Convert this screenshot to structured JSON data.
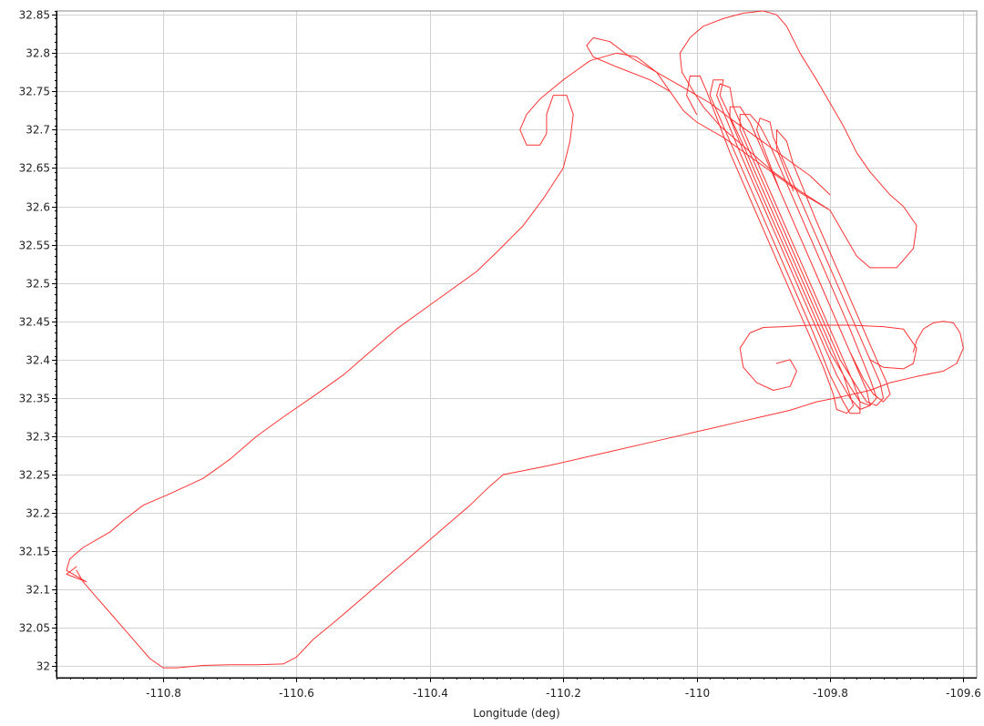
{
  "chart_data": {
    "type": "line",
    "title": "",
    "xlabel": "Longitude (deg)",
    "ylabel": "",
    "xlim": [
      -110.96,
      -109.58
    ],
    "ylim": [
      31.985,
      32.855
    ],
    "x_ticks": [
      -110.8,
      -110.6,
      -110.4,
      -110.2,
      -110,
      -109.8,
      -109.6
    ],
    "x_tick_labels": [
      "-110.8",
      "-110.6",
      "-110.4",
      "-110.2",
      "-110",
      "-109.8",
      "-109.6"
    ],
    "y_ticks": [
      32,
      32.05,
      32.1,
      32.15,
      32.2,
      32.25,
      32.3,
      32.35,
      32.4,
      32.45,
      32.5,
      32.55,
      32.6,
      32.65,
      32.7,
      32.75,
      32.8,
      32.85
    ],
    "y_tick_labels": [
      "32",
      "32.05",
      "32.1",
      "32.15",
      "32.2",
      "32.25",
      "32.3",
      "32.35",
      "32.4",
      "32.45",
      "32.5",
      "32.55",
      "32.6",
      "32.65",
      "32.7",
      "32.75",
      "32.8",
      "32.85"
    ],
    "grid": true,
    "colors": {
      "line": "#ff3333",
      "grid": "#d2d2d2",
      "axis": "#000000"
    },
    "series": [
      {
        "points": [
          [
            -110.93,
            32.13
          ],
          [
            -110.945,
            32.12
          ],
          [
            -110.915,
            32.11
          ],
          [
            -110.945,
            32.125
          ],
          [
            -110.94,
            32.14
          ],
          [
            -110.92,
            32.155
          ],
          [
            -110.9,
            32.165
          ],
          [
            -110.88,
            32.175
          ],
          [
            -110.86,
            32.19
          ],
          [
            -110.83,
            32.21
          ],
          [
            -110.79,
            32.225
          ],
          [
            -110.74,
            32.245
          ],
          [
            -110.7,
            32.27
          ],
          [
            -110.66,
            32.3
          ],
          [
            -110.62,
            32.325
          ],
          [
            -110.57,
            32.355
          ],
          [
            -110.53,
            32.38
          ],
          [
            -110.49,
            32.41
          ],
          [
            -110.45,
            32.44
          ],
          [
            -110.41,
            32.465
          ],
          [
            -110.37,
            32.49
          ],
          [
            -110.33,
            32.515
          ],
          [
            -110.3,
            32.54
          ],
          [
            -110.26,
            32.575
          ],
          [
            -110.23,
            32.61
          ],
          [
            -110.2,
            32.65
          ],
          [
            -110.19,
            32.685
          ],
          [
            -110.185,
            32.72
          ],
          [
            -110.195,
            32.745
          ],
          [
            -110.215,
            32.745
          ],
          [
            -110.225,
            32.72
          ],
          [
            -110.225,
            32.695
          ],
          [
            -110.235,
            32.68
          ],
          [
            -110.255,
            32.68
          ],
          [
            -110.265,
            32.7
          ],
          [
            -110.255,
            32.72
          ],
          [
            -110.235,
            32.74
          ],
          [
            -110.2,
            32.765
          ],
          [
            -110.16,
            32.79
          ],
          [
            -110.12,
            32.8
          ],
          [
            -110.09,
            32.795
          ],
          [
            -110.06,
            32.775
          ],
          [
            -110.04,
            32.75
          ],
          [
            -110.02,
            32.725
          ],
          [
            -110.0,
            32.71
          ],
          [
            -109.96,
            32.69
          ],
          [
            -109.92,
            32.665
          ],
          [
            -109.88,
            32.64
          ],
          [
            -109.845,
            32.618
          ],
          [
            -109.8,
            32.595
          ],
          [
            -109.78,
            32.565
          ],
          [
            -109.76,
            32.535
          ],
          [
            -109.74,
            32.52
          ],
          [
            -109.7,
            32.52
          ],
          [
            -109.675,
            32.545
          ],
          [
            -109.67,
            32.575
          ],
          [
            -109.69,
            32.6
          ],
          [
            -109.71,
            32.615
          ],
          [
            -109.74,
            32.645
          ],
          [
            -109.76,
            32.67
          ],
          [
            -109.78,
            32.705
          ],
          [
            -109.8,
            32.735
          ],
          [
            -109.82,
            32.765
          ],
          [
            -109.845,
            32.8
          ],
          [
            -109.865,
            32.835
          ],
          [
            -109.88,
            32.85
          ],
          [
            -109.9,
            32.855
          ],
          [
            -109.93,
            32.852
          ],
          [
            -109.96,
            32.845
          ],
          [
            -109.99,
            32.835
          ],
          [
            -110.01,
            32.82
          ],
          [
            -110.025,
            32.8
          ],
          [
            -110.022,
            32.775
          ],
          [
            -110.005,
            32.75
          ],
          [
            -109.99,
            32.73
          ],
          [
            -109.965,
            32.705
          ],
          [
            -109.925,
            32.675
          ],
          [
            -109.885,
            32.645
          ],
          [
            -109.845,
            32.62
          ],
          [
            -109.8,
            32.595
          ]
        ]
      },
      {
        "points": [
          [
            -110.04,
            32.75
          ],
          [
            -110.07,
            32.765
          ],
          [
            -110.12,
            32.782
          ],
          [
            -110.155,
            32.795
          ],
          [
            -110.165,
            32.81
          ],
          [
            -110.155,
            32.82
          ],
          [
            -110.13,
            32.815
          ],
          [
            -110.1,
            32.795
          ],
          [
            -110.06,
            32.775
          ],
          [
            -110.02,
            32.755
          ],
          [
            -109.98,
            32.735
          ],
          [
            -109.95,
            32.715
          ],
          [
            -109.91,
            32.69
          ],
          [
            -109.87,
            32.665
          ],
          [
            -109.83,
            32.64
          ],
          [
            -109.8,
            32.615
          ]
        ]
      },
      {
        "points": [
          [
            -110.0,
            32.72
          ],
          [
            -110.015,
            32.745
          ],
          [
            -110.01,
            32.77
          ],
          [
            -109.995,
            32.77
          ],
          [
            -109.985,
            32.75
          ],
          [
            -109.95,
            32.67
          ],
          [
            -109.91,
            32.59
          ],
          [
            -109.87,
            32.51
          ],
          [
            -109.835,
            32.44
          ],
          [
            -109.81,
            32.39
          ],
          [
            -109.795,
            32.355
          ],
          [
            -109.79,
            32.335
          ],
          [
            -109.775,
            32.33
          ],
          [
            -109.765,
            32.34
          ],
          [
            -109.78,
            32.38
          ],
          [
            -109.815,
            32.45
          ],
          [
            -109.85,
            32.52
          ],
          [
            -109.89,
            32.6
          ],
          [
            -109.93,
            32.68
          ],
          [
            -109.965,
            32.745
          ],
          [
            -109.96,
            32.765
          ],
          [
            -109.975,
            32.765
          ],
          [
            -109.98,
            32.745
          ],
          [
            -109.94,
            32.665
          ],
          [
            -109.9,
            32.585
          ],
          [
            -109.86,
            32.505
          ],
          [
            -109.825,
            32.435
          ],
          [
            -109.8,
            32.38
          ],
          [
            -109.78,
            32.345
          ],
          [
            -109.77,
            32.33
          ],
          [
            -109.755,
            32.33
          ],
          [
            -109.755,
            32.345
          ],
          [
            -109.765,
            32.37
          ],
          [
            -109.8,
            32.44
          ],
          [
            -109.835,
            32.51
          ],
          [
            -109.875,
            32.59
          ],
          [
            -109.915,
            32.67
          ],
          [
            -109.945,
            32.73
          ],
          [
            -109.95,
            32.755
          ],
          [
            -109.965,
            32.76
          ],
          [
            -109.97,
            32.745
          ],
          [
            -109.935,
            32.67
          ],
          [
            -109.895,
            32.59
          ],
          [
            -109.855,
            32.51
          ],
          [
            -109.82,
            32.44
          ],
          [
            -109.79,
            32.38
          ],
          [
            -109.77,
            32.35
          ],
          [
            -109.755,
            32.335
          ],
          [
            -109.74,
            32.34
          ],
          [
            -109.745,
            32.36
          ],
          [
            -109.77,
            32.41
          ],
          [
            -109.805,
            32.48
          ],
          [
            -109.845,
            32.56
          ],
          [
            -109.885,
            32.64
          ],
          [
            -109.92,
            32.71
          ],
          [
            -109.935,
            32.73
          ],
          [
            -109.95,
            32.73
          ],
          [
            -109.95,
            32.715
          ],
          [
            -109.915,
            32.64
          ],
          [
            -109.875,
            32.56
          ],
          [
            -109.835,
            32.48
          ],
          [
            -109.8,
            32.41
          ],
          [
            -109.77,
            32.365
          ],
          [
            -109.755,
            32.345
          ],
          [
            -109.74,
            32.34
          ],
          [
            -109.73,
            32.35
          ],
          [
            -109.74,
            32.375
          ],
          [
            -109.77,
            32.44
          ],
          [
            -109.81,
            32.52
          ],
          [
            -109.85,
            32.6
          ],
          [
            -109.89,
            32.68
          ],
          [
            -109.905,
            32.705
          ],
          [
            -109.92,
            32.72
          ],
          [
            -109.935,
            32.72
          ],
          [
            -109.935,
            32.7
          ],
          [
            -109.895,
            32.62
          ],
          [
            -109.855,
            32.54
          ],
          [
            -109.815,
            32.46
          ],
          [
            -109.785,
            32.4
          ],
          [
            -109.76,
            32.365
          ],
          [
            -109.745,
            32.345
          ],
          [
            -109.73,
            32.34
          ],
          [
            -109.72,
            32.35
          ],
          [
            -109.725,
            32.37
          ],
          [
            -109.755,
            32.43
          ],
          [
            -109.79,
            32.5
          ],
          [
            -109.83,
            32.58
          ],
          [
            -109.87,
            32.66
          ],
          [
            -109.885,
            32.69
          ],
          [
            -109.89,
            32.71
          ],
          [
            -109.905,
            32.715
          ],
          [
            -109.91,
            32.7
          ],
          [
            -109.875,
            32.62
          ],
          [
            -109.835,
            32.54
          ],
          [
            -109.8,
            32.47
          ],
          [
            -109.77,
            32.41
          ],
          [
            -109.75,
            32.375
          ],
          [
            -109.735,
            32.355
          ],
          [
            -109.72,
            32.345
          ],
          [
            -109.71,
            32.355
          ],
          [
            -109.715,
            32.37
          ],
          [
            -109.745,
            32.43
          ],
          [
            -109.78,
            32.5
          ],
          [
            -109.82,
            32.58
          ],
          [
            -109.855,
            32.655
          ],
          [
            -109.865,
            32.685
          ],
          [
            -109.88,
            32.7
          ],
          [
            -109.88,
            32.675
          ],
          [
            -109.855,
            32.62
          ]
        ]
      },
      {
        "points": [
          [
            -109.78,
            32.445
          ],
          [
            -109.83,
            32.445
          ],
          [
            -109.87,
            32.443
          ],
          [
            -109.9,
            32.442
          ],
          [
            -109.92,
            32.435
          ],
          [
            -109.935,
            32.415
          ],
          [
            -109.93,
            32.39
          ],
          [
            -109.91,
            32.37
          ],
          [
            -109.885,
            32.36
          ],
          [
            -109.86,
            32.365
          ],
          [
            -109.85,
            32.385
          ],
          [
            -109.86,
            32.4
          ],
          [
            -109.88,
            32.395
          ]
        ]
      },
      {
        "points": [
          [
            -109.83,
            32.445
          ],
          [
            -109.77,
            32.445
          ],
          [
            -109.72,
            32.443
          ],
          [
            -109.69,
            32.44
          ],
          [
            -109.67,
            32.415
          ],
          [
            -109.675,
            32.395
          ],
          [
            -109.69,
            32.388
          ],
          [
            -109.72,
            32.39
          ],
          [
            -109.74,
            32.4
          ]
        ]
      },
      {
        "points": [
          [
            -110.29,
            32.25
          ],
          [
            -110.26,
            32.255
          ],
          [
            -110.22,
            32.262
          ],
          [
            -110.17,
            32.272
          ],
          [
            -110.12,
            32.282
          ],
          [
            -110.07,
            32.292
          ],
          [
            -110.02,
            32.302
          ],
          [
            -109.98,
            32.31
          ],
          [
            -109.94,
            32.318
          ],
          [
            -109.9,
            32.326
          ],
          [
            -109.86,
            32.334
          ],
          [
            -109.82,
            32.345
          ],
          [
            -109.78,
            32.352
          ],
          [
            -109.74,
            32.36
          ],
          [
            -109.71,
            32.37
          ],
          [
            -109.67,
            32.378
          ],
          [
            -109.63,
            32.385
          ],
          [
            -109.61,
            32.395
          ],
          [
            -109.6,
            32.415
          ],
          [
            -109.605,
            32.435
          ],
          [
            -109.615,
            32.448
          ],
          [
            -109.63,
            32.45
          ],
          [
            -109.645,
            32.448
          ],
          [
            -109.66,
            32.44
          ],
          [
            -109.67,
            32.425
          ],
          [
            -109.675,
            32.41
          ]
        ]
      },
      {
        "points": [
          [
            -110.29,
            32.25
          ],
          [
            -110.31,
            32.235
          ],
          [
            -110.34,
            32.21
          ],
          [
            -110.38,
            32.18
          ],
          [
            -110.42,
            32.15
          ],
          [
            -110.46,
            32.12
          ],
          [
            -110.5,
            32.09
          ],
          [
            -110.54,
            32.06
          ],
          [
            -110.575,
            32.035
          ],
          [
            -110.6,
            32.012
          ],
          [
            -110.62,
            32.003
          ],
          [
            -110.66,
            32.002
          ],
          [
            -110.7,
            32.002
          ],
          [
            -110.74,
            32.001
          ],
          [
            -110.78,
            31.998
          ],
          [
            -110.8,
            31.998
          ],
          [
            -110.82,
            32.01
          ],
          [
            -110.84,
            32.03
          ],
          [
            -110.86,
            32.05
          ],
          [
            -110.88,
            32.07
          ],
          [
            -110.9,
            32.09
          ],
          [
            -110.92,
            32.11
          ],
          [
            -110.93,
            32.125
          ]
        ]
      }
    ]
  }
}
